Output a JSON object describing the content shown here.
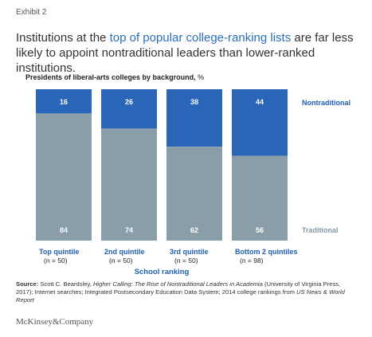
{
  "exhibit": "Exhibit 2",
  "headline": {
    "before": "Institutions at the ",
    "highlight": "top of popular college-ranking lists",
    "after": " are far less likely to appoint nontraditional leaders than lower-ranked institutions."
  },
  "chart_subtitle": {
    "text": "Presidents of liberal-arts colleges by background,",
    "unit": " %"
  },
  "colors": {
    "nontraditional": "#2a66b8",
    "traditional": "#8a9ea9",
    "accent": "#1f5fb0"
  },
  "chart_data": {
    "type": "bar",
    "stacked": true,
    "categories": [
      "Top quintile",
      "2nd quintile",
      "3rd quintile",
      "Bottom 2 quintiles"
    ],
    "category_n": [
      "(n = 50)",
      "(n = 50)",
      "(n = 50)",
      "(n = 98)"
    ],
    "series": [
      {
        "name": "Traditional",
        "values": [
          84,
          74,
          62,
          56
        ]
      },
      {
        "name": "Nontraditional",
        "values": [
          16,
          26,
          38,
          44
        ]
      }
    ],
    "xlabel": "School ranking",
    "ylim": [
      0,
      100
    ],
    "legend": "right"
  },
  "source": {
    "label": "Source:",
    "text_1": " Scott C. Beardsley, ",
    "italic_1": "Higher Calling: The Rise of Nontraditional Leaders in Academia",
    "text_2": " (University of Virginia Press, 2017); Internet searches; Integrated Postsecondary Education Data System; 2014 college rankings from ",
    "italic_2": "US News & World Report"
  },
  "logo": "McKinsey&Company"
}
